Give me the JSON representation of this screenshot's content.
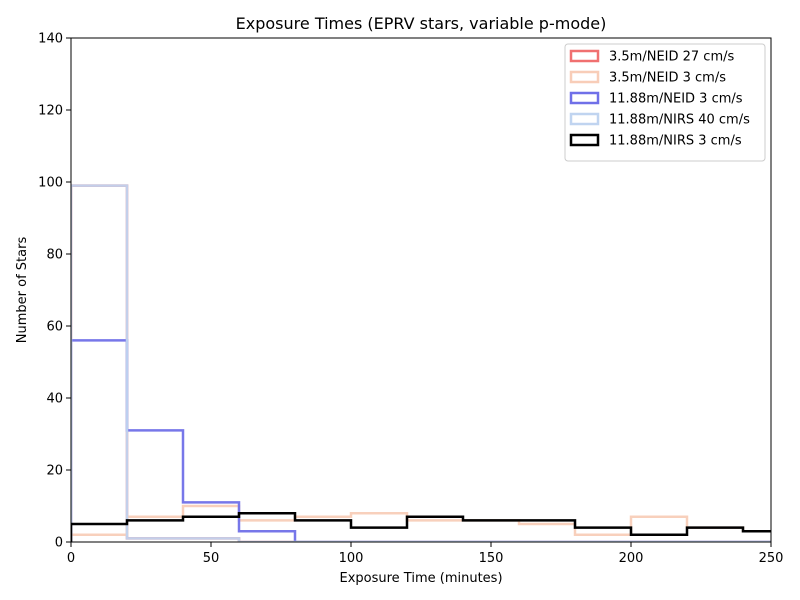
{
  "chart_data": {
    "type": "histogram",
    "title": "Exposure Times (EPRV stars, variable p-mode)",
    "xlabel": "Exposure Time (minutes)",
    "ylabel": "Number of Stars",
    "xlim": [
      0,
      250
    ],
    "ylim": [
      0,
      140
    ],
    "xticks": [
      0,
      50,
      100,
      150,
      200,
      250
    ],
    "yticks": [
      0,
      20,
      40,
      60,
      80,
      100,
      120,
      140
    ],
    "bin_edges": [
      0,
      20,
      40,
      60,
      80,
      100,
      120,
      140,
      160,
      180,
      200,
      220,
      240,
      260
    ],
    "grid": false,
    "legend_position": "top-right",
    "series": [
      {
        "name": "3.5m/NEID 27 cm/s",
        "color": "#f07070",
        "values": [
          99,
          1,
          1,
          0,
          0,
          0,
          0,
          0,
          0,
          0,
          0,
          0,
          0
        ]
      },
      {
        "name": "3.5m/NEID 3 cm/s",
        "color": "#f8cdb8",
        "values": [
          2,
          7,
          10,
          6,
          7,
          8,
          6,
          6,
          5,
          2,
          7,
          4,
          3
        ]
      },
      {
        "name": "11.88m/NEID 3 cm/s",
        "color": "#7070e8",
        "values": [
          56,
          31,
          11,
          3,
          0,
          0,
          0,
          0,
          0,
          0,
          0,
          0,
          0
        ]
      },
      {
        "name": "11.88m/NIRS 40 cm/s",
        "color": "#c0d4f0",
        "values": [
          99,
          1,
          1,
          0,
          0,
          0,
          0,
          0,
          0,
          0,
          0,
          0,
          0
        ]
      },
      {
        "name": "11.88m/NIRS 3 cm/s",
        "color": "#000000",
        "values": [
          5,
          6,
          7,
          8,
          6,
          4,
          7,
          6,
          6,
          4,
          2,
          4,
          3
        ]
      }
    ]
  }
}
